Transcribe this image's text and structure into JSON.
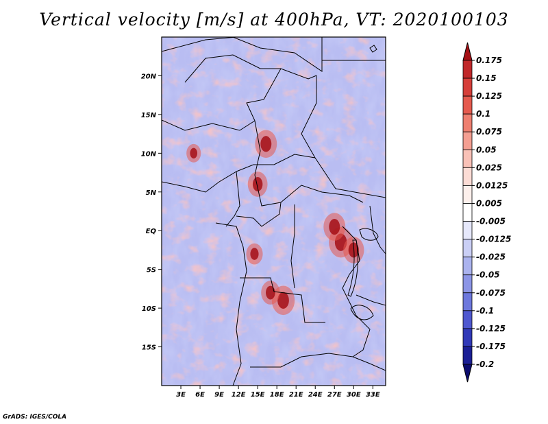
{
  "chart_data": {
    "type": "heatmap",
    "title": "Vertical velocity [m/s] at 400hPa, VT: 2020100103",
    "xlabel": "",
    "ylabel": "",
    "xlim": [
      0,
      35
    ],
    "ylim": [
      -20,
      25
    ],
    "x_ticks": [
      {
        "value": 3,
        "label": "3E"
      },
      {
        "value": 6,
        "label": "6E"
      },
      {
        "value": 9,
        "label": "9E"
      },
      {
        "value": 12,
        "label": "12E"
      },
      {
        "value": 15,
        "label": "15E"
      },
      {
        "value": 18,
        "label": "18E"
      },
      {
        "value": 21,
        "label": "21E"
      },
      {
        "value": 24,
        "label": "24E"
      },
      {
        "value": 27,
        "label": "27E"
      },
      {
        "value": 30,
        "label": "30E"
      },
      {
        "value": 33,
        "label": "33E"
      }
    ],
    "y_ticks": [
      {
        "value": 20,
        "label": "20N"
      },
      {
        "value": 15,
        "label": "15N"
      },
      {
        "value": 10,
        "label": "10N"
      },
      {
        "value": 5,
        "label": "5N"
      },
      {
        "value": 0,
        "label": "EQ"
      },
      {
        "value": -5,
        "label": "5S"
      },
      {
        "value": -10,
        "label": "10S"
      },
      {
        "value": -15,
        "label": "15S"
      }
    ],
    "colorbar": {
      "labels": [
        "0.175",
        "0.15",
        "0.125",
        "0.1",
        "0.075",
        "0.05",
        "0.025",
        "0.0125",
        "0.005",
        "-0.005",
        "-0.0125",
        "-0.025",
        "-0.05",
        "-0.075",
        "-0.1",
        "-0.125",
        "-0.175",
        "-0.2"
      ],
      "colors": [
        "#a50f15",
        "#c0282a",
        "#d63f3a",
        "#e55a4e",
        "#ee7f70",
        "#f49f92",
        "#f9c1b7",
        "#fcdcd5",
        "#fdf0ec",
        "#ffffff",
        "#e6e8fb",
        "#cacff5",
        "#abb3ee",
        "#8c95e6",
        "#6d78dd",
        "#4f58d0",
        "#3139b8",
        "#1b1f95",
        "#0c0c6e"
      ]
    },
    "features": {
      "updraft_hotspots": [
        {
          "lon": 28,
          "lat": -1.5,
          "strength": 0.17
        },
        {
          "lon": 27,
          "lat": 0.5,
          "strength": 0.15
        },
        {
          "lon": 30,
          "lat": -2.5,
          "strength": 0.14
        },
        {
          "lon": 19,
          "lat": -9,
          "strength": 0.16
        },
        {
          "lon": 17,
          "lat": -8,
          "strength": 0.12
        },
        {
          "lon": 16.3,
          "lat": 11.2,
          "strength": 0.15
        },
        {
          "lon": 15,
          "lat": 6,
          "strength": 0.13
        },
        {
          "lon": 14.5,
          "lat": -3,
          "strength": 0.1
        },
        {
          "lon": 5,
          "lat": 10,
          "strength": 0.08
        }
      ]
    }
  },
  "credit": "GrADS: IGES/COLA"
}
